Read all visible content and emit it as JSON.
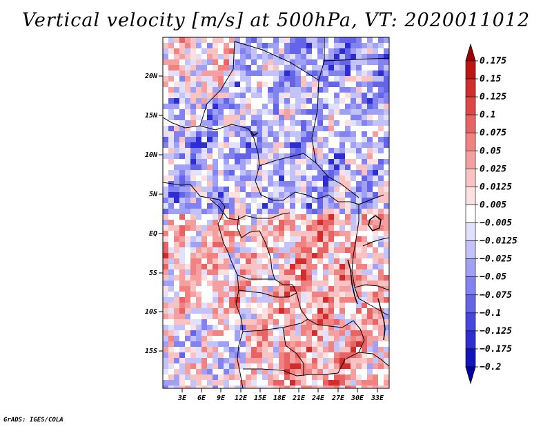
{
  "title": "Vertical velocity [m/s] at 500hPa, VT: 2020011012",
  "map": {
    "lat_labels": [
      "20N",
      "15N",
      "10N",
      "5N",
      "EQ",
      "5S",
      "10S",
      "15S"
    ],
    "lon_labels": [
      "3E",
      "6E",
      "9E",
      "12E",
      "15E",
      "18E",
      "21E",
      "24E",
      "27E",
      "30E",
      "33E"
    ]
  },
  "colorbar": {
    "labels": [
      "0.175",
      "0.15",
      "0.125",
      "0.1",
      "0.075",
      "0.05",
      "0.025",
      "0.0125",
      "0.005",
      "−0.005",
      "−0.0125",
      "−0.025",
      "−0.05",
      "−0.075",
      "−0.1",
      "−0.125",
      "−0.175",
      "−0.2"
    ],
    "colors": [
      "#a00000",
      "#be1414",
      "#d22d2d",
      "#e04646",
      "#e86464",
      "#f08282",
      "#f5a0a0",
      "#fac3c3",
      "#fde1e1",
      "#ffffff",
      "#e1e1fd",
      "#c3c3fa",
      "#a0a0f5",
      "#8282f0",
      "#6464e8",
      "#4646e0",
      "#2d2dd2",
      "#1414be",
      "#0000a0"
    ]
  },
  "credit": "GrADS: IGES/COLA"
}
